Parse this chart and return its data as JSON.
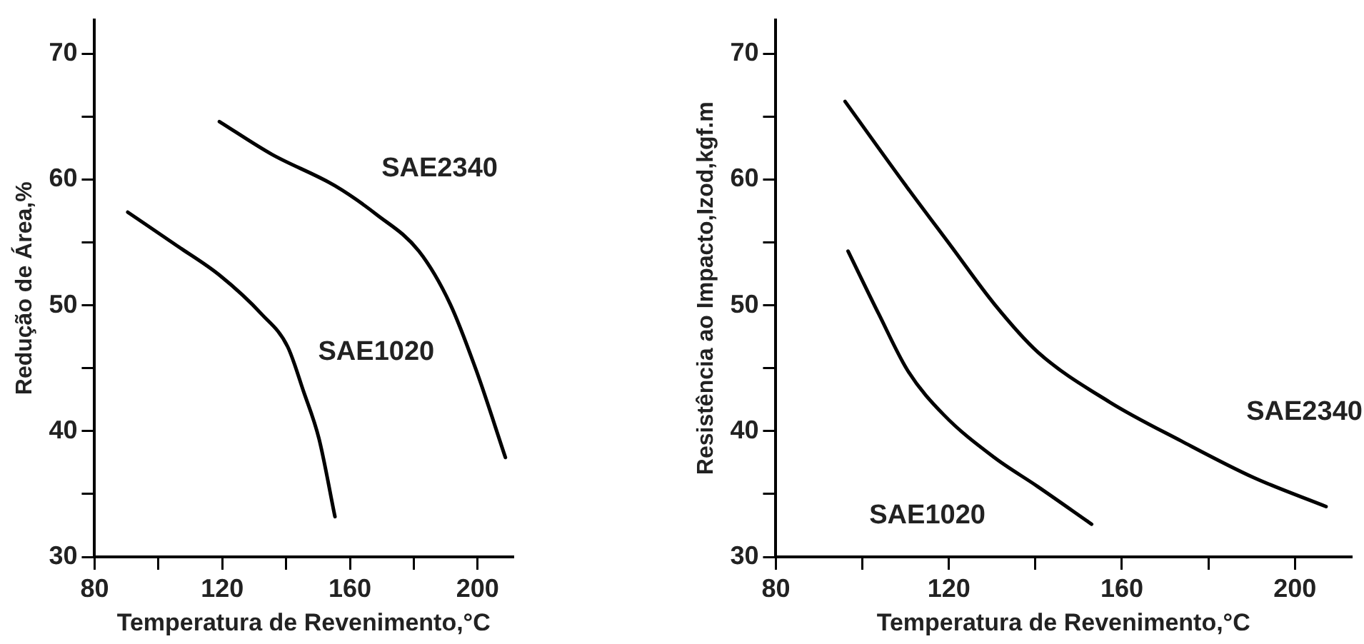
{
  "chart_data": [
    {
      "type": "line",
      "xlabel": "Temperatura de Revenimento,°C",
      "ylabel": "Redução de Área,%",
      "xlim": [
        80,
        211
      ],
      "ylim": [
        30,
        72.7
      ],
      "xticks": [
        80,
        {
          "value": 100,
          "label": null
        },
        120,
        {
          "value": 140,
          "label": null
        },
        160,
        {
          "value": 180,
          "label": null
        },
        200
      ],
      "yticks": [
        30,
        {
          "value": 35,
          "label": null
        },
        40,
        {
          "value": 45,
          "label": null
        },
        50,
        {
          "value": 55,
          "label": null
        },
        60,
        {
          "value": 65,
          "label": null
        },
        70
      ],
      "marker": "none",
      "line_style": "solid",
      "series": [
        {
          "name": "SAE2340",
          "color": "#000000",
          "x": [
            119.1,
            135.5,
            155.3,
            168.4,
            181.6,
            191.4,
            199.6,
            208.7
          ],
          "values": [
            64.6,
            62.0,
            59.5,
            57.2,
            54.3,
            50.1,
            44.8,
            37.9
          ]
        },
        {
          "name": "SAE1020",
          "color": "#000000",
          "x": [
            90.4,
            106.0,
            119.1,
            132.3,
            140.5,
            145.4,
            150.3,
            155.3
          ],
          "values": [
            57.4,
            54.7,
            52.4,
            49.3,
            46.7,
            43.2,
            39.4,
            33.2
          ]
        }
      ]
    },
    {
      "type": "line",
      "xlabel": "Temperatura de Revenimento,°C",
      "ylabel": "Resistência ao Impacto,Izod,kgf.m",
      "xlim": [
        80,
        213
      ],
      "ylim": [
        30,
        72.7
      ],
      "xticks": [
        80,
        {
          "value": 100,
          "label": null
        },
        120,
        {
          "value": 140,
          "label": null
        },
        160,
        {
          "value": 180,
          "label": null
        },
        200
      ],
      "yticks": [
        30,
        {
          "value": 35,
          "label": null
        },
        40,
        {
          "value": 45,
          "label": null
        },
        50,
        {
          "value": 55,
          "label": null
        },
        60,
        {
          "value": 65,
          "label": null
        },
        70
      ],
      "marker": "none",
      "line_style": "solid",
      "series": [
        {
          "name": "SAE2340",
          "color": "#000000",
          "x": [
            96.0,
            110.5,
            120.5,
            130.5,
            140.5,
            157.2,
            173.8,
            190.5,
            207.2
          ],
          "values": [
            66.2,
            59.3,
            54.7,
            50.1,
            46.3,
            42.3,
            39.2,
            36.3,
            34.0
          ]
        },
        {
          "name": "SAE1020",
          "color": "#000000",
          "x": [
            96.7,
            103.8,
            110.5,
            118.8,
            130.5,
            140.5,
            153.0
          ],
          "values": [
            54.3,
            49.3,
            44.8,
            41.3,
            37.9,
            35.6,
            32.6
          ]
        }
      ]
    }
  ]
}
